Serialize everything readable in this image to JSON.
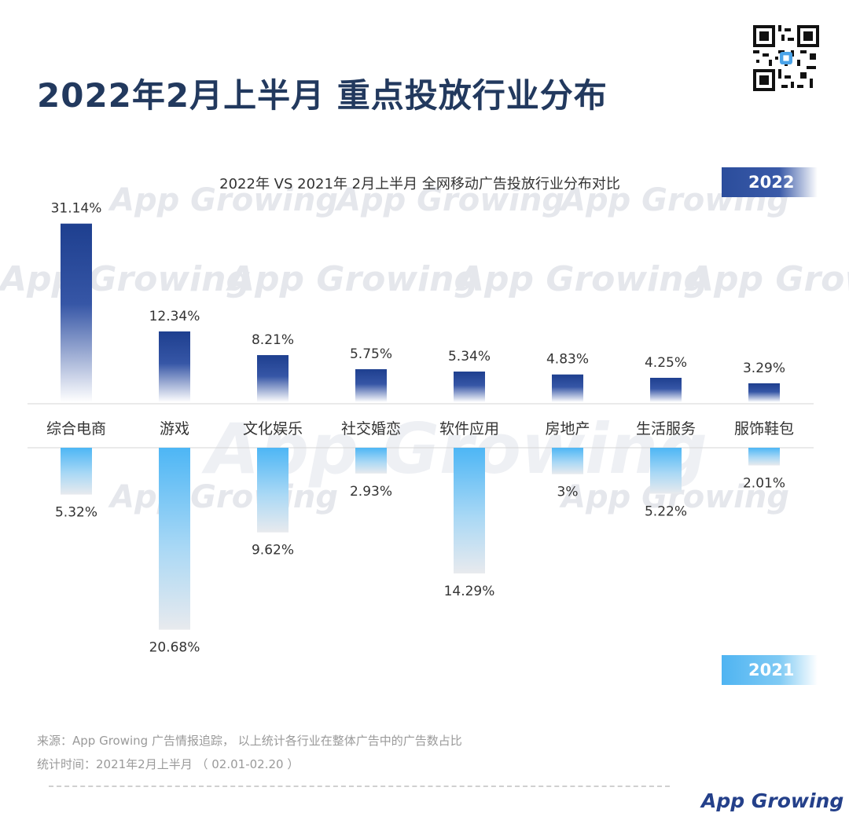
{
  "header": {
    "title": "2022年2月上半月 重点投放行业分布"
  },
  "chart_data": {
    "type": "bar",
    "title": "2022年 VS 2021年 2月上半月 全网移动广告投放行业分布对比",
    "categories": [
      "综合电商",
      "游戏",
      "文化娱乐",
      "社交婚恋",
      "软件应用",
      "房地产",
      "生活服务",
      "服饰鞋包"
    ],
    "series": [
      {
        "name": "2022",
        "values": [
          31.14,
          12.34,
          8.21,
          5.75,
          5.34,
          4.83,
          4.25,
          3.29
        ],
        "labels": [
          "31.14%",
          "12.34%",
          "8.21%",
          "5.75%",
          "5.34%",
          "4.83%",
          "4.25%",
          "3.29%"
        ],
        "color": "#2a4a99"
      },
      {
        "name": "2021",
        "values": [
          5.32,
          20.68,
          9.62,
          2.93,
          14.29,
          3,
          5.22,
          2.01
        ],
        "labels": [
          "5.32%",
          "20.68%",
          "9.62%",
          "2.93%",
          "14.29%",
          "3%",
          "5.22%",
          "2.01%"
        ],
        "color": "#4db6f5"
      }
    ],
    "ylabel": "",
    "xlabel": "",
    "grid": false,
    "legend": "right"
  },
  "legend": {
    "year_2022": "2022",
    "year_2021": "2021"
  },
  "footer": {
    "source": "来源：App Growing 广告情报追踪， 以上统计各行业在整体广告中的广告数占比",
    "period": "统计时间：2021年2月上半月 （ 02.01-02.20 ）",
    "logo": "App Growing"
  },
  "watermark": "App Growing",
  "colors": {
    "title": "#22395e",
    "bar_2022": "#2a4a99",
    "bar_2021": "#4db6f5"
  }
}
